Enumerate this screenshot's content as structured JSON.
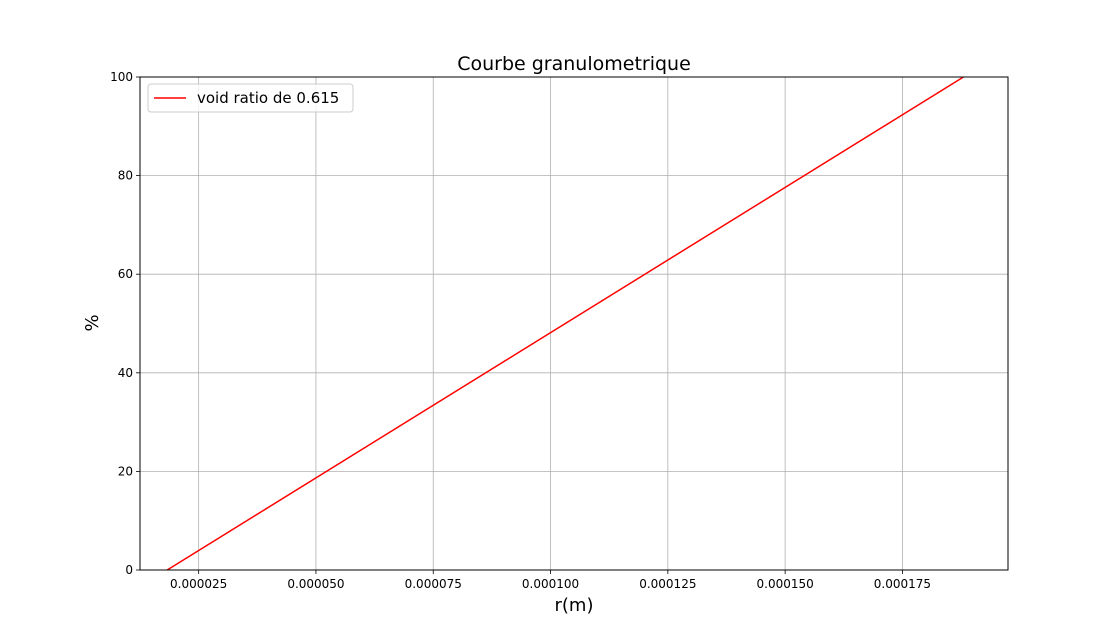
{
  "chart_data": {
    "type": "line",
    "title": "Courbe granulometrique",
    "xlabel": "r(m)",
    "ylabel": "%",
    "xlim": [
      1.25e-05,
      0.0001975
    ],
    "ylim": [
      0,
      100
    ],
    "x_ticks": [
      2.5e-05,
      5e-05,
      7.5e-05,
      0.0001,
      0.000125,
      0.00015,
      0.000175
    ],
    "x_tick_labels": [
      "0.000025",
      "0.000050",
      "0.000075",
      "0.000100",
      "0.000125",
      "0.000150",
      "0.000175"
    ],
    "y_ticks": [
      0,
      20,
      40,
      60,
      80,
      100
    ],
    "y_tick_labels": [
      "0",
      "20",
      "40",
      "60",
      "80",
      "100"
    ],
    "grid": true,
    "legend_position": "top-left",
    "series": [
      {
        "name": "void ratio de 0.615",
        "color": "#ff0000",
        "x": [
          1.83e-05,
          0.000188
        ],
        "y": [
          0,
          100
        ]
      }
    ]
  }
}
